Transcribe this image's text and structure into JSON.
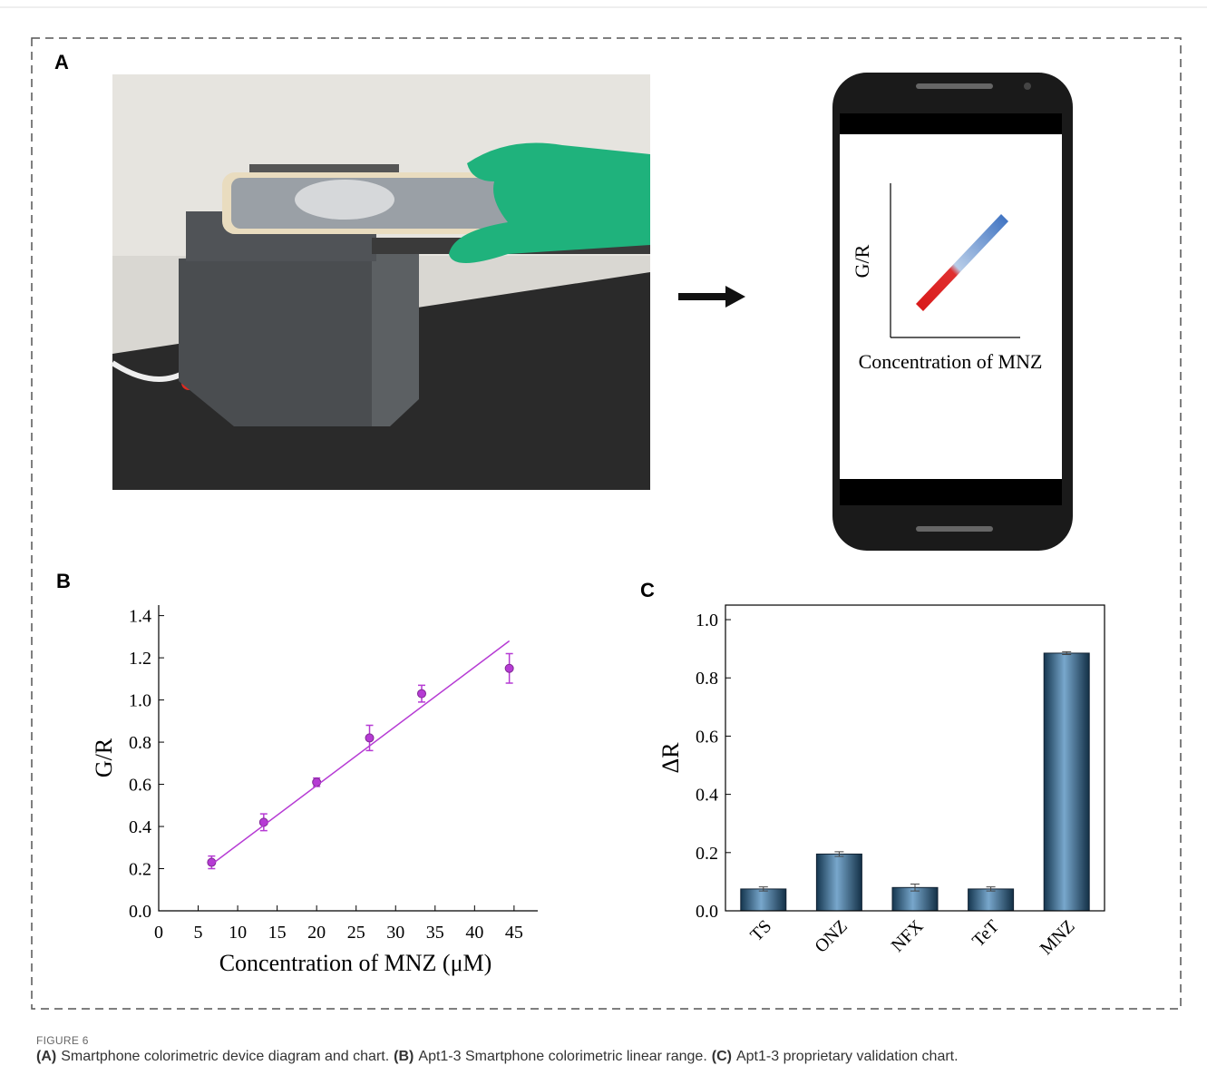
{
  "panel_a": {
    "label": "A",
    "screen_y_label": "G/R",
    "screen_x_label": "Concentration of MNZ"
  },
  "chart_data": [
    {
      "type": "scatter",
      "panel": "B",
      "x_label": "Concentration of MNZ (μM)",
      "y_label": "G/R",
      "xlim": [
        0,
        48
      ],
      "ylim": [
        0,
        1.45
      ],
      "xticks": [
        0,
        5,
        10,
        15,
        20,
        25,
        30,
        35,
        40,
        45
      ],
      "yticks": [
        {
          "value": 0,
          "label": "0.0"
        },
        0.2,
        0.4,
        0.6,
        0.8,
        {
          "value": 1,
          "label": "1.0"
        },
        1.2,
        1.4
      ],
      "series": [
        {
          "color": "#b63bd4",
          "x": [
            6.7,
            13.3,
            20,
            26.7,
            33.3,
            44.4
          ],
          "values": [
            0.23,
            0.42,
            0.61,
            0.82,
            1.03,
            1.15
          ],
          "errors": [
            0.03,
            0.04,
            0.02,
            0.06,
            0.04,
            0.07
          ]
        }
      ],
      "fit": {
        "x": [
          6.7,
          44.4
        ],
        "y": [
          0.22,
          1.28
        ]
      }
    },
    {
      "type": "bar",
      "panel": "C",
      "y_label": "ΔR",
      "box": true,
      "color": "#2f78b0",
      "ylim": [
        0,
        1.05
      ],
      "yticks": [
        {
          "value": 0,
          "label": "0.0"
        },
        0.2,
        0.4,
        0.6,
        0.8,
        {
          "value": 1,
          "label": "1.0"
        }
      ],
      "categories": [
        "TS",
        "ONZ",
        "NFX",
        "TeT",
        "MNZ"
      ],
      "values": [
        0.075,
        0.195,
        0.08,
        0.075,
        0.885
      ],
      "errors": [
        0.007,
        0.008,
        0.012,
        0.007,
        0.005
      ]
    }
  ],
  "caption": {
    "figure_label": "FIGURE 6",
    "parts": [
      {
        "tag": "(A)",
        "text": "Smartphone colorimetric device diagram and chart."
      },
      {
        "tag": "(B)",
        "text": "Apt1-3 Smartphone colorimetric linear range."
      },
      {
        "tag": "(C)",
        "text": "Apt1-3 proprietary validation chart."
      }
    ]
  }
}
